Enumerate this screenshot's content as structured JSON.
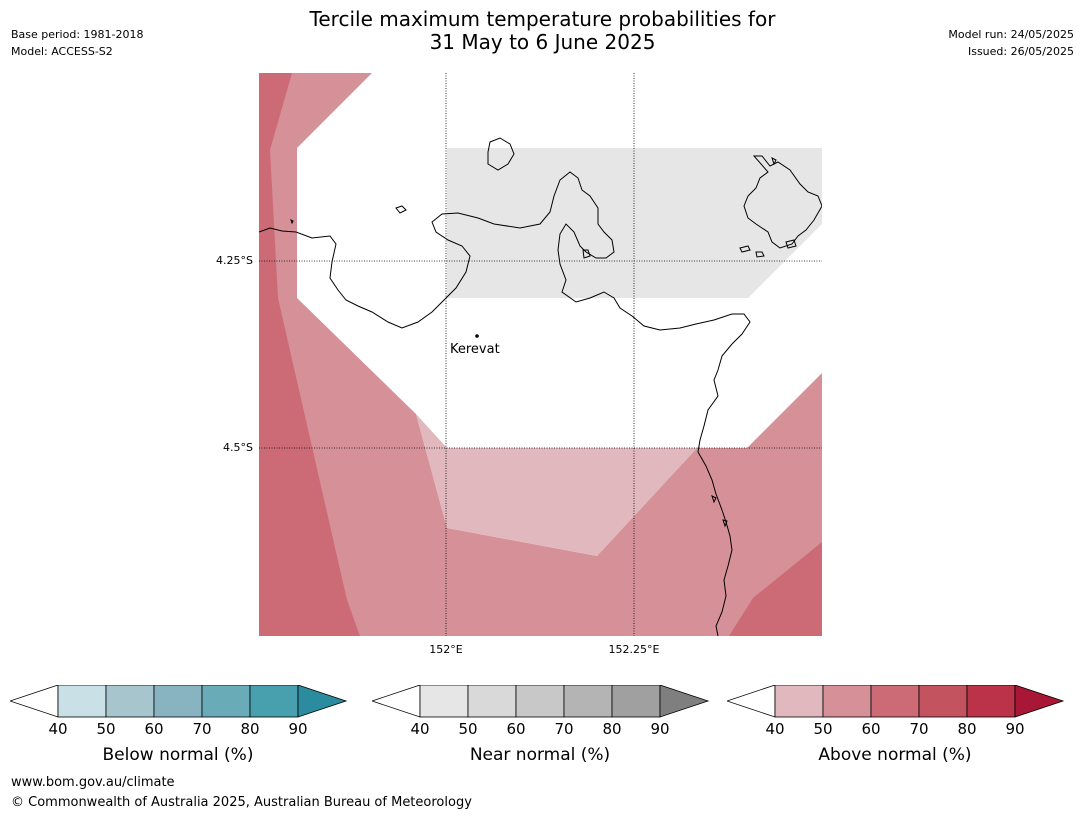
{
  "title": {
    "line1": "Tercile maximum temperature probabilities for",
    "line2": "31 May to 6 June 2025"
  },
  "meta": {
    "base_period": "Base period: 1981-2018",
    "model": "Model: ACCESS-S2",
    "model_run": "Model run: 24/05/2025",
    "issued": "Issued: 26/05/2025"
  },
  "map": {
    "lat_labels": [
      "4.25°S",
      "4.5°S"
    ],
    "lon_labels": [
      "152°E",
      "152.25°E"
    ],
    "places": [
      {
        "name": "Kerevat"
      }
    ],
    "colors": {
      "above_40": "#e0b8bd",
      "above_50": "#d69098",
      "above_60": "#cc6b76",
      "near_40": "#e6e6e6",
      "coast": "#000000"
    }
  },
  "colorbars": [
    {
      "label": "Below normal (%)",
      "ticks": [
        "40",
        "50",
        "60",
        "70",
        "80",
        "90"
      ],
      "colors": [
        "#c8e0e6",
        "#a6c5cc",
        "#88b4c2",
        "#6aabb8",
        "#489fae",
        "#2a8c9e"
      ]
    },
    {
      "label": "Near normal (%)",
      "ticks": [
        "40",
        "50",
        "60",
        "70",
        "80",
        "90"
      ],
      "colors": [
        "#e6e6e6",
        "#d9d9d9",
        "#c8c8c8",
        "#b4b4b4",
        "#a0a0a0",
        "#7f7f7f"
      ]
    },
    {
      "label": "Above normal (%)",
      "ticks": [
        "40",
        "50",
        "60",
        "70",
        "80",
        "90"
      ],
      "colors": [
        "#e0b8bd",
        "#d69098",
        "#cc6b76",
        "#c45360",
        "#bb3349",
        "#a81836"
      ]
    }
  ],
  "footer": {
    "url": "www.bom.gov.au/climate",
    "copyright": "© Commonwealth of Australia 2025, Australian Bureau of Meteorology"
  }
}
